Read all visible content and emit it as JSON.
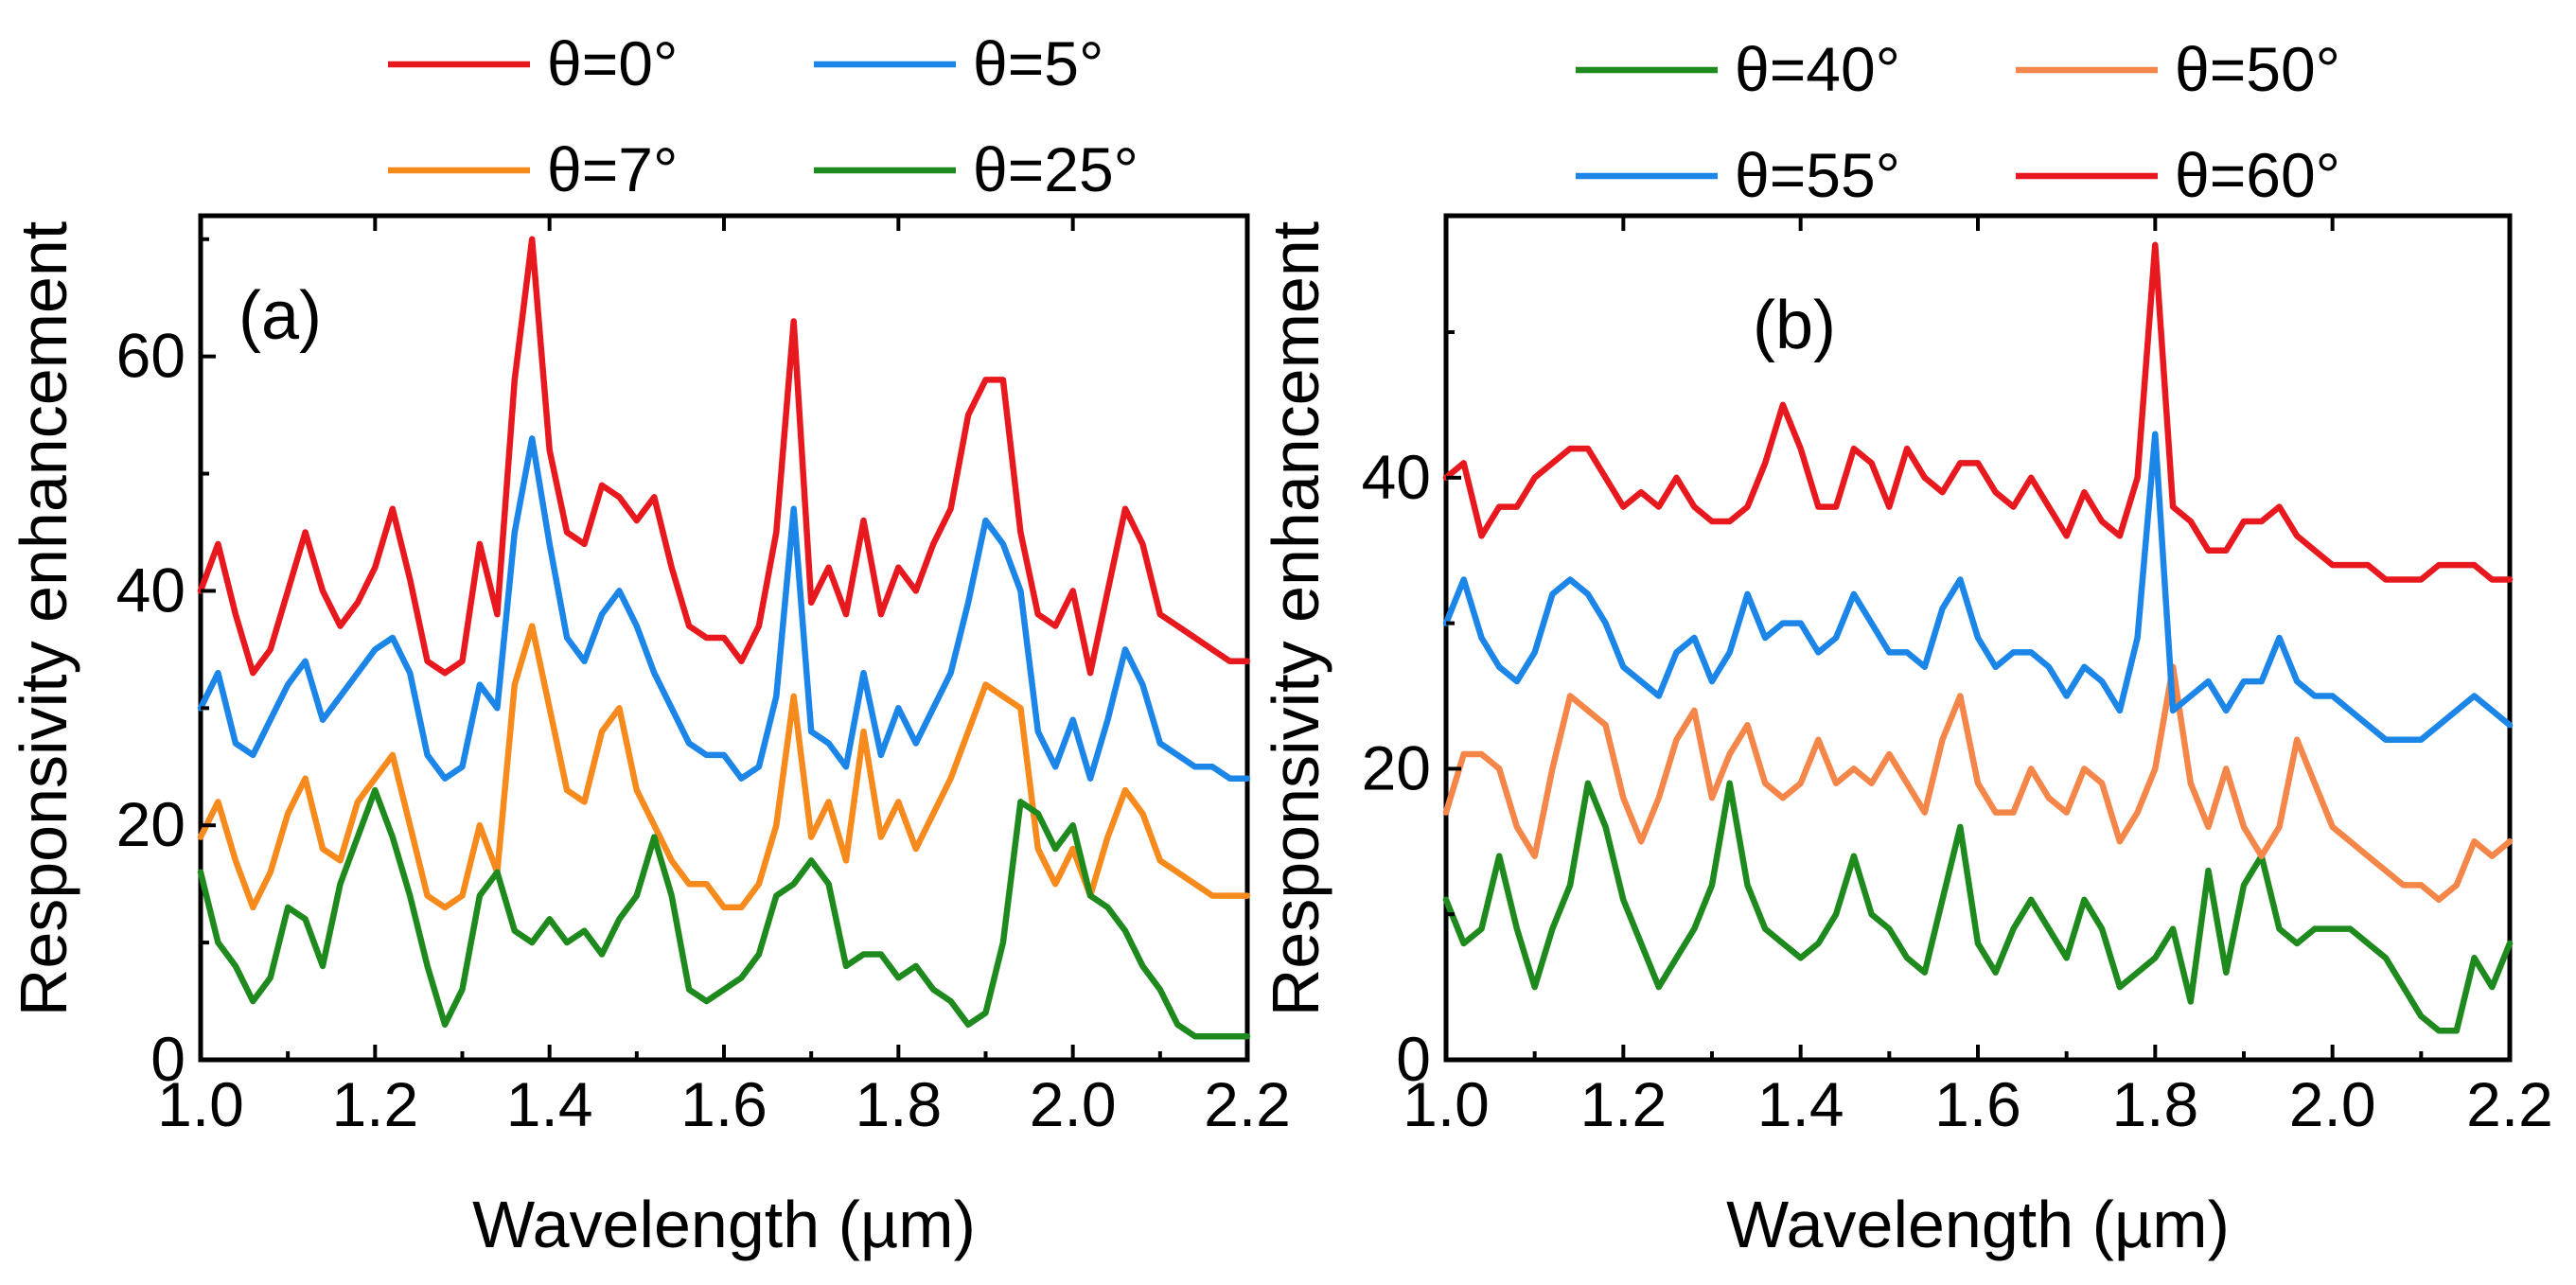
{
  "chart_data": [
    {
      "type": "line",
      "panel_label": "(a)",
      "xlabel": "Wavelength (µm)",
      "ylabel": "Responsivity enhancement",
      "xlim": [
        1.0,
        2.2
      ],
      "ylim": [
        0,
        72
      ],
      "xticks": [
        1.0,
        1.2,
        1.4,
        1.6,
        1.8,
        2.0,
        2.2
      ],
      "xtick_labels": [
        "1.0",
        "1.2",
        "1.4",
        "1.6",
        "1.8",
        "2.0",
        "2.2"
      ],
      "yticks": [
        0,
        20,
        40,
        60
      ],
      "ytick_labels": [
        "0",
        "20",
        "40",
        "60"
      ],
      "legend_placement": "top, 2 columns",
      "x": [
        1.0,
        1.02,
        1.04,
        1.06,
        1.08,
        1.1,
        1.12,
        1.14,
        1.16,
        1.18,
        1.2,
        1.22,
        1.24,
        1.26,
        1.28,
        1.3,
        1.32,
        1.34,
        1.36,
        1.38,
        1.4,
        1.42,
        1.44,
        1.46,
        1.48,
        1.5,
        1.52,
        1.54,
        1.56,
        1.58,
        1.6,
        1.62,
        1.64,
        1.66,
        1.68,
        1.7,
        1.72,
        1.74,
        1.76,
        1.78,
        1.8,
        1.82,
        1.84,
        1.86,
        1.88,
        1.9,
        1.92,
        1.94,
        1.96,
        1.98,
        2.0,
        2.02,
        2.04,
        2.06,
        2.08,
        2.1,
        2.12,
        2.14,
        2.16,
        2.18,
        2.2
      ],
      "series": [
        {
          "name": "θ=0°",
          "color": "#e8191e",
          "values": [
            40,
            44,
            38,
            33,
            35,
            40,
            45,
            40,
            37,
            39,
            42,
            47,
            41,
            34,
            33,
            34,
            44,
            38,
            58,
            70,
            52,
            45,
            44,
            49,
            48,
            46,
            48,
            42,
            37,
            36,
            36,
            34,
            37,
            45,
            63,
            39,
            42,
            38,
            46,
            38,
            42,
            40,
            44,
            47,
            55,
            58,
            58,
            45,
            38,
            37,
            40,
            33,
            40,
            47,
            44,
            38,
            37,
            36,
            35,
            34,
            34
          ]
        },
        {
          "name": "θ=5°",
          "color": "#1b86e8",
          "values": [
            30,
            33,
            27,
            26,
            29,
            32,
            34,
            29,
            31,
            33,
            35,
            36,
            33,
            26,
            24,
            25,
            32,
            30,
            45,
            53,
            44,
            36,
            34,
            38,
            40,
            37,
            33,
            30,
            27,
            26,
            26,
            24,
            25,
            31,
            47,
            28,
            27,
            25,
            33,
            26,
            30,
            27,
            30,
            33,
            39,
            46,
            44,
            40,
            28,
            25,
            29,
            24,
            29,
            35,
            32,
            27,
            26,
            25,
            25,
            24,
            24
          ]
        },
        {
          "name": "θ=7°",
          "color": "#f78a1c",
          "values": [
            19,
            22,
            17,
            13,
            16,
            21,
            24,
            18,
            17,
            22,
            24,
            26,
            20,
            14,
            13,
            14,
            20,
            16,
            32,
            37,
            30,
            23,
            22,
            28,
            30,
            23,
            20,
            17,
            15,
            15,
            13,
            13,
            15,
            20,
            31,
            19,
            22,
            17,
            28,
            19,
            22,
            18,
            21,
            24,
            28,
            32,
            31,
            30,
            18,
            15,
            18,
            14,
            19,
            23,
            21,
            17,
            16,
            15,
            14,
            14,
            14
          ]
        },
        {
          "name": "θ=25°",
          "color": "#1e8a1e",
          "values": [
            16,
            10,
            8,
            5,
            7,
            13,
            12,
            8,
            15,
            19,
            23,
            19,
            14,
            8,
            3,
            6,
            14,
            16,
            11,
            10,
            12,
            10,
            11,
            9,
            12,
            14,
            19,
            14,
            6,
            5,
            6,
            7,
            9,
            14,
            15,
            17,
            15,
            8,
            9,
            9,
            7,
            8,
            6,
            5,
            3,
            4,
            10,
            22,
            21,
            18,
            20,
            14,
            13,
            11,
            8,
            6,
            3,
            2,
            2,
            2,
            2
          ]
        }
      ]
    },
    {
      "type": "line",
      "panel_label": "(b)",
      "xlabel": "Wavelength (µm)",
      "ylabel": "Responsivity enhancement",
      "xlim": [
        1.0,
        2.2
      ],
      "ylim": [
        0,
        58
      ],
      "xticks": [
        1.0,
        1.2,
        1.4,
        1.6,
        1.8,
        2.0,
        2.2
      ],
      "xtick_labels": [
        "1.0",
        "1.2",
        "1.4",
        "1.6",
        "1.8",
        "2.0",
        "2.2"
      ],
      "yticks": [
        0,
        20,
        40
      ],
      "ytick_labels": [
        "0",
        "20",
        "40"
      ],
      "legend_placement": "top, 2 columns",
      "x": [
        1.0,
        1.02,
        1.04,
        1.06,
        1.08,
        1.1,
        1.12,
        1.14,
        1.16,
        1.18,
        1.2,
        1.22,
        1.24,
        1.26,
        1.28,
        1.3,
        1.32,
        1.34,
        1.36,
        1.38,
        1.4,
        1.42,
        1.44,
        1.46,
        1.48,
        1.5,
        1.52,
        1.54,
        1.56,
        1.58,
        1.6,
        1.62,
        1.64,
        1.66,
        1.68,
        1.7,
        1.72,
        1.74,
        1.76,
        1.78,
        1.8,
        1.82,
        1.84,
        1.86,
        1.88,
        1.9,
        1.92,
        1.94,
        1.96,
        1.98,
        2.0,
        2.02,
        2.04,
        2.06,
        2.08,
        2.1,
        2.12,
        2.14,
        2.16,
        2.18,
        2.2
      ],
      "series": [
        {
          "name": "θ=40°",
          "color": "#1e8a1e",
          "values": [
            11,
            8,
            9,
            14,
            9,
            5,
            9,
            12,
            19,
            16,
            11,
            8,
            5,
            7,
            9,
            12,
            19,
            12,
            9,
            8,
            7,
            8,
            10,
            14,
            10,
            9,
            7,
            6,
            11,
            16,
            8,
            6,
            9,
            11,
            9,
            7,
            11,
            9,
            5,
            6,
            7,
            9,
            4,
            13,
            6,
            12,
            14,
            9,
            8,
            9,
            9,
            9,
            8,
            7,
            5,
            3,
            2,
            2,
            7,
            5,
            8
          ]
        },
        {
          "name": "θ=50°",
          "color": "#f5864a",
          "values": [
            17,
            21,
            21,
            20,
            16,
            14,
            20,
            25,
            24,
            23,
            18,
            15,
            18,
            22,
            24,
            18,
            21,
            23,
            19,
            18,
            19,
            22,
            19,
            20,
            19,
            21,
            19,
            17,
            22,
            25,
            19,
            17,
            17,
            20,
            18,
            17,
            20,
            19,
            15,
            17,
            20,
            27,
            19,
            16,
            20,
            16,
            14,
            16,
            22,
            19,
            16,
            15,
            14,
            13,
            12,
            12,
            11,
            12,
            15,
            14,
            15
          ]
        },
        {
          "name": "θ=55°",
          "color": "#1b86e8",
          "values": [
            30,
            33,
            29,
            27,
            26,
            28,
            32,
            33,
            32,
            30,
            27,
            26,
            25,
            28,
            29,
            26,
            28,
            32,
            29,
            30,
            30,
            28,
            29,
            32,
            30,
            28,
            28,
            27,
            31,
            33,
            29,
            27,
            28,
            28,
            27,
            25,
            27,
            26,
            24,
            29,
            43,
            24,
            25,
            26,
            24,
            26,
            26,
            29,
            26,
            25,
            25,
            24,
            23,
            22,
            22,
            22,
            23,
            24,
            25,
            24,
            23
          ]
        },
        {
          "name": "θ=60°",
          "color": "#e8191e",
          "values": [
            40,
            41,
            36,
            38,
            38,
            40,
            41,
            42,
            42,
            40,
            38,
            39,
            38,
            40,
            38,
            37,
            37,
            38,
            41,
            45,
            42,
            38,
            38,
            42,
            41,
            38,
            42,
            40,
            39,
            41,
            41,
            39,
            38,
            40,
            38,
            36,
            39,
            37,
            36,
            40,
            56,
            38,
            37,
            35,
            35,
            37,
            37,
            38,
            36,
            35,
            34,
            34,
            34,
            33,
            33,
            33,
            34,
            34,
            34,
            33,
            33
          ]
        }
      ]
    }
  ]
}
